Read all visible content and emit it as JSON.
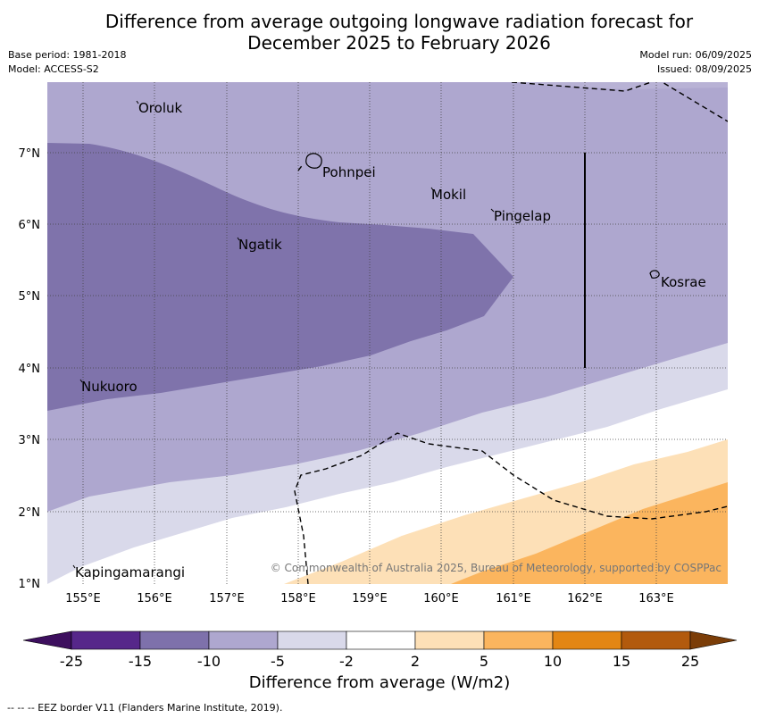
{
  "title_line1": "Difference from average outgoing longwave radiation forecast for",
  "title_line2": "December 2025 to February 2026",
  "base_period": "Base period: 1981-2018",
  "model": "Model: ACCESS-S2",
  "model_run": "Model run: 06/09/2025",
  "issued": "Issued: 08/09/2025",
  "lon_ticks": [
    "155°E",
    "156°E",
    "157°E",
    "158°E",
    "159°E",
    "160°E",
    "161°E",
    "162°E",
    "163°E"
  ],
  "lat_ticks": [
    "7°N",
    "6°N",
    "5°N",
    "4°N",
    "3°N",
    "2°N",
    "1°N"
  ],
  "places": [
    {
      "name": "Oroluk"
    },
    {
      "name": "Pohnpei"
    },
    {
      "name": "Mokil"
    },
    {
      "name": "Pingelap"
    },
    {
      "name": "Ngatik"
    },
    {
      "name": "Kosrae"
    },
    {
      "name": "Nukuoro"
    },
    {
      "name": "Kapingamarangi"
    }
  ],
  "copyright": "© Commonwealth of Australia 2025, Bureau of Meteorology, supported by COSPPac",
  "colorbar": {
    "labels": [
      "-25",
      "-15",
      "-10",
      "-5",
      "-2",
      "2",
      "5",
      "10",
      "15",
      "25"
    ],
    "colors": [
      "#56278a",
      "#7e71ab",
      "#aea7cf",
      "#d9d9ea",
      "#ffffff",
      "#fde0b7",
      "#fbb55e",
      "#e38613",
      "#b25a0d"
    ],
    "under_color": "#3d0f5e",
    "over_color": "#7b3d08",
    "title": "Difference from average (W/m2)"
  },
  "eez_note": "--  --  -- EEZ border V11 (Flanders Marine Institute, 2019)."
}
